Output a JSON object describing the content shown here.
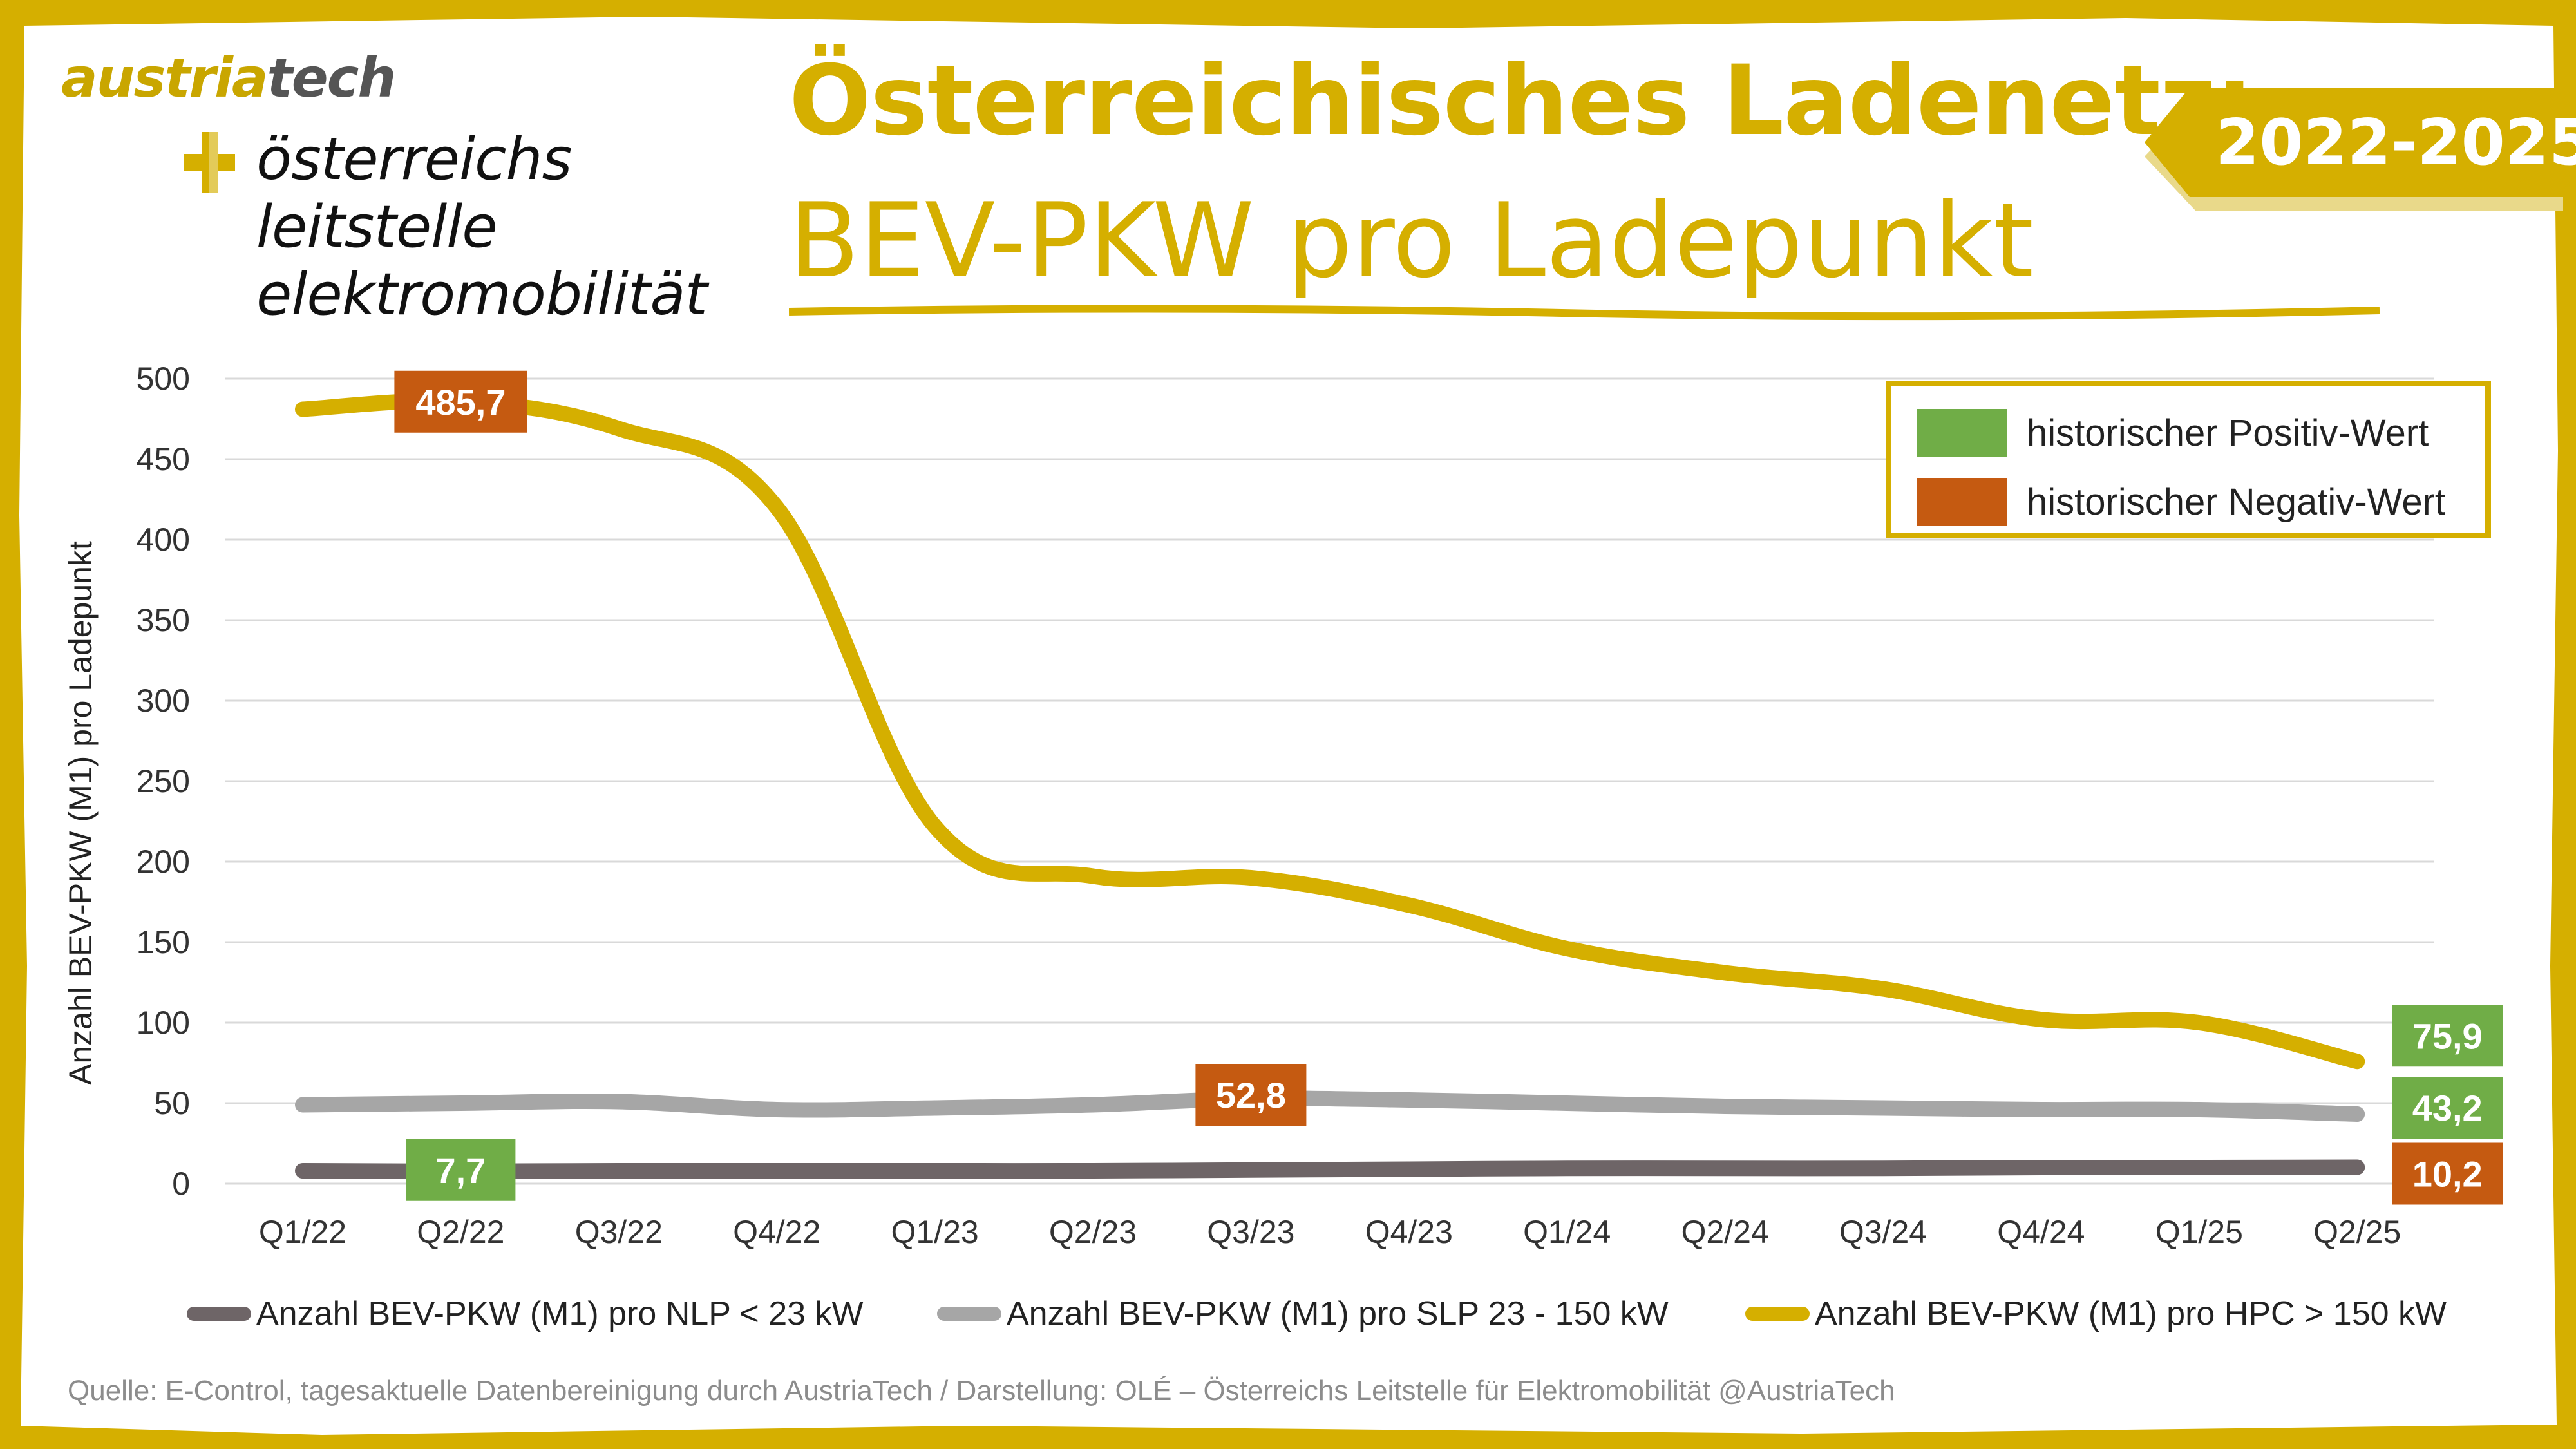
{
  "header": {
    "brand_a": "austria",
    "brand_b": "tech",
    "logo_lines": [
      "österreichs",
      "leitstelle",
      "elektromobilität"
    ],
    "title_line1": "Österreichisches Ladenetz:",
    "title_line2": "BEV-PKW pro Ladepunkt",
    "period_badge": "2022-2025"
  },
  "legend_box": {
    "positive_label": "historischer Positiv-Wert",
    "negative_label": "historischer Negativ-Wert"
  },
  "colors": {
    "frame": "#D5AF00",
    "positive": "#70AD47",
    "negative": "#C55A11",
    "nlp": "#6E6567",
    "slp": "#A6A6A6",
    "hpc": "#D5AF00",
    "grid": "#D9D9D9"
  },
  "source_text": "Quelle: E-Control, tagesaktuelle Datenbereinigung durch AustriaTech / Darstellung: OLÉ – Österreichs Leitstelle für Elektromobilität @AustriaTech",
  "chart_data": {
    "type": "line",
    "title": "BEV-PKW pro Ladepunkt",
    "xlabel": "",
    "ylabel": "Anzahl BEV-PKW (M1) pro Ladepunkt",
    "ylim": [
      0,
      500
    ],
    "yticks": [
      0,
      50,
      100,
      150,
      200,
      250,
      300,
      350,
      400,
      450,
      500
    ],
    "categories": [
      "Q1/22",
      "Q2/22",
      "Q3/22",
      "Q4/22",
      "Q1/23",
      "Q2/23",
      "Q3/23",
      "Q4/23",
      "Q1/24",
      "Q2/24",
      "Q3/24",
      "Q4/24",
      "Q1/25",
      "Q2/25"
    ],
    "series": [
      {
        "key": "nlp",
        "name": "Anzahl BEV-PKW (M1) pro NLP < 23 kW",
        "values": [
          8,
          7.7,
          8,
          8,
          8,
          8,
          8.5,
          9,
          9.5,
          9.5,
          9.5,
          10,
          10,
          10.2
        ]
      },
      {
        "key": "slp",
        "name": "Anzahl BEV-PKW (M1) pro SLP 23 - 150 kW",
        "values": [
          49,
          50,
          51,
          46,
          47,
          49,
          52.8,
          52,
          50,
          48,
          47,
          46,
          46,
          43.2
        ]
      },
      {
        "key": "hpc",
        "name": "Anzahl BEV-PKW (M1) pro HPC > 150 kW",
        "values": [
          481,
          485.7,
          469,
          420,
          222,
          191,
          190,
          173,
          146,
          131,
          121,
          102,
          100,
          75.9
        ]
      }
    ],
    "annotations": [
      {
        "series": "hpc",
        "index": 1,
        "label": "485,7",
        "kind": "negative"
      },
      {
        "series": "nlp",
        "index": 1,
        "label": "7,7",
        "kind": "positive"
      },
      {
        "series": "slp",
        "index": 6,
        "label": "52,8",
        "kind": "negative"
      },
      {
        "series": "hpc",
        "index": 13,
        "label": "75,9",
        "kind": "positive"
      },
      {
        "series": "slp",
        "index": 13,
        "label": "43,2",
        "kind": "positive"
      },
      {
        "series": "nlp",
        "index": 13,
        "label": "10,2",
        "kind": "negative"
      }
    ],
    "legend": "bottom"
  }
}
